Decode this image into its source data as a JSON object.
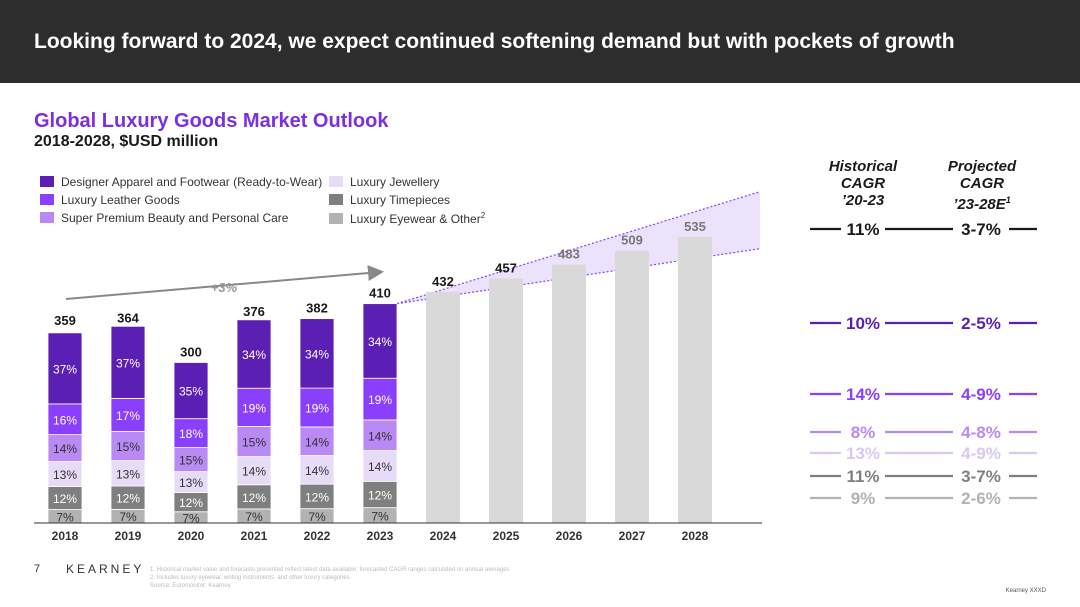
{
  "header": {
    "title": "Looking forward to 2024, we expect continued softening demand but with pockets of growth"
  },
  "chart_title": "Global Luxury Goods Market Outlook",
  "chart_subtitle": "2018-2028, $USD million",
  "legend": [
    {
      "label": "Designer Apparel and Footwear (Ready-to-Wear)",
      "color": "#5b1fb3"
    },
    {
      "label": "Luxury Leather Goods",
      "color": "#8a3ffc"
    },
    {
      "label": "Super Premium Beauty and Personal Care",
      "color": "#b98af3"
    },
    {
      "label": "Luxury Jewellery",
      "color": "#e6dcf7"
    },
    {
      "label": "Luxury Timepieces",
      "color": "#7f7f7f"
    },
    {
      "label": "Luxury Eyewear & Other",
      "sup": "2",
      "color": "#b2b2b2"
    }
  ],
  "cagr_headers": {
    "historical": [
      "Historical",
      "CAGR",
      "’20-23"
    ],
    "projected": [
      "Projected",
      "CAGR",
      "’23-28E"
    ],
    "projected_sup": "1"
  },
  "growth_arrow_label": "+3%",
  "chart_data": {
    "type": "bar",
    "title": "Global Luxury Goods Market Outlook",
    "subtitle": "2018-2028, $USD million",
    "categories": [
      "2018",
      "2019",
      "2020",
      "2021",
      "2022",
      "2023",
      "2024",
      "2025",
      "2026",
      "2027",
      "2028"
    ],
    "totals": [
      359,
      364,
      300,
      376,
      382,
      410,
      432,
      457,
      483,
      509,
      535
    ],
    "stacked_series_bottom_to_top": [
      {
        "name": "Luxury Eyewear & Other",
        "color": "#b2b2b2",
        "shares": [
          7,
          7,
          7,
          7,
          7,
          7
        ]
      },
      {
        "name": "Luxury Timepieces",
        "color": "#7f7f7f",
        "shares": [
          12,
          12,
          12,
          12,
          12,
          12
        ]
      },
      {
        "name": "Luxury Jewellery",
        "color": "#e6dcf7",
        "shares": [
          13,
          13,
          13,
          14,
          14,
          14
        ]
      },
      {
        "name": "Super Premium Beauty and Personal Care",
        "color": "#b98af3",
        "shares": [
          14,
          15,
          15,
          15,
          14,
          14
        ]
      },
      {
        "name": "Luxury Leather Goods",
        "color": "#8a3ffc",
        "shares": [
          16,
          17,
          18,
          19,
          19,
          19
        ]
      },
      {
        "name": "Designer Apparel and Footwear (Ready-to-Wear)",
        "color": "#5b1fb3",
        "shares": [
          37,
          37,
          35,
          34,
          34,
          34
        ]
      }
    ],
    "share_labels_bottom_to_top": [
      [
        "7%",
        "12%",
        "13%",
        "14%",
        "16%",
        "37%"
      ],
      [
        "7%",
        "12%",
        "13%",
        "15%",
        "17%",
        "37%"
      ],
      [
        "7%",
        "12%",
        "13%",
        "15%",
        "18%",
        "35%"
      ],
      [
        "7%",
        "12%",
        "14%",
        "15%",
        "19%",
        "34%"
      ],
      [
        "7%",
        "12%",
        "14%",
        "14%",
        "19%",
        "34%"
      ],
      [
        "7%",
        "12%",
        "14%",
        "14%",
        "19%",
        "34%"
      ]
    ],
    "forecast_start_index": 6,
    "forecast_color": "#d9d9d9",
    "cagr": [
      {
        "historical": "11%",
        "projected": "3-7%",
        "color": "#1a1a1a"
      },
      {
        "historical": "10%",
        "projected": "2-5%",
        "color": "#5b1fb3"
      },
      {
        "historical": "14%",
        "projected": "4-9%",
        "color": "#8a3ffc"
      },
      {
        "historical": "8%",
        "projected": "4-8%",
        "color": "#b98af3"
      },
      {
        "historical": "13%",
        "projected": "4-9%",
        "color": "#d8c8f3"
      },
      {
        "historical": "11%",
        "projected": "3-7%",
        "color": "#7f7f7f"
      },
      {
        "historical": "9%",
        "projected": "2-6%",
        "color": "#b2b2b2"
      }
    ]
  },
  "footer": {
    "page_number": "7",
    "logo": "KEARNEY",
    "footnotes": [
      "1. Historical market value and forecasts presented reflect latest data available; forecasted CAGR ranges calculated on annual averages",
      "2. Includes luxury eyewear, writing instruments, and other luxury categories",
      "Source: Euromonitor; Kearney"
    ],
    "copyright": "Kearney XXXD"
  }
}
